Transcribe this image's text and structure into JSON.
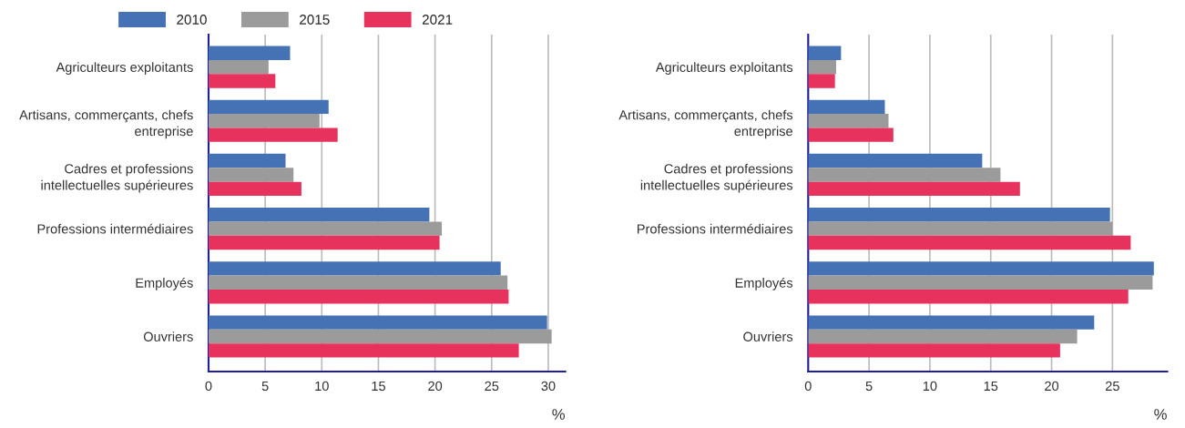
{
  "chart_data": [
    {
      "type": "bar",
      "orientation": "horizontal",
      "xlabel": "%",
      "categories": [
        "Agriculteurs exploitants",
        "Artisans, commerçants, chefs entreprise",
        "Cadres et professions intellectuelles supérieures",
        "Professions intermédiaires",
        "Employés",
        "Ouvriers"
      ],
      "xlim": [
        0,
        31.5
      ],
      "xticks": [
        0,
        5,
        10,
        15,
        20,
        25,
        30
      ],
      "grid": "x",
      "legend": "top left",
      "series": [
        {
          "name": "2010",
          "color": "#4472b4",
          "values": [
            7.2,
            10.6,
            6.8,
            19.5,
            25.8,
            29.9
          ]
        },
        {
          "name": "2015",
          "color": "#9b9b9b",
          "values": [
            5.3,
            9.8,
            7.5,
            20.6,
            26.4,
            30.3
          ]
        },
        {
          "name": "2021",
          "color": "#e8325e",
          "values": [
            5.9,
            11.4,
            8.2,
            20.4,
            26.5,
            27.4
          ]
        }
      ]
    },
    {
      "type": "bar",
      "orientation": "horizontal",
      "xlabel": "%",
      "categories": [
        "Agriculteurs exploitants",
        "Artisans, commerçants, chefs entreprise",
        "Cadres et professions intellectuelles supérieures",
        "Professions intermédiaires",
        "Employés",
        "Ouvriers"
      ],
      "xlim": [
        0,
        29.5
      ],
      "xticks": [
        0,
        5,
        10,
        15,
        20,
        25
      ],
      "grid": "x",
      "series": [
        {
          "color": "#4472b4",
          "values": [
            2.7,
            6.3,
            14.3,
            24.8,
            28.4,
            23.5
          ]
        },
        {
          "color": "#9b9b9b",
          "values": [
            2.3,
            6.6,
            15.8,
            25.0,
            28.3,
            22.1
          ]
        },
        {
          "color": "#e8325e",
          "values": [
            2.2,
            7.0,
            17.4,
            26.5,
            26.3,
            20.7
          ]
        }
      ]
    }
  ]
}
